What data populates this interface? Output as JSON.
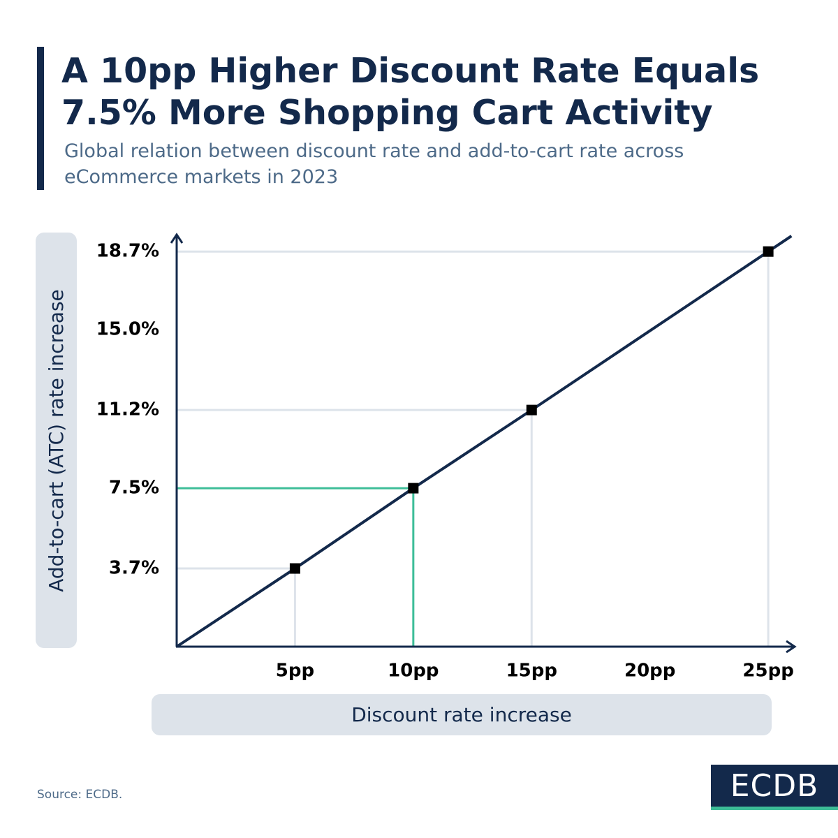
{
  "title": "A 10pp Higher Discount Rate Equals 7.5% More Shopping Cart Activity",
  "subtitle": "Global relation between discount rate and add-to-cart rate across eCommerce markets in 2023",
  "source": "Source: ECDB.",
  "logo": "ECDB",
  "chart_data": {
    "type": "line",
    "x_label": "Discount rate increase",
    "y_label": "Add-to-cart (ATC) rate increase",
    "x": [
      5,
      10,
      15,
      25
    ],
    "series": [
      {
        "values": [
          3.7,
          7.5,
          11.2,
          18.7
        ],
        "color": "#13294b"
      }
    ],
    "guide_colors": [
      "#dde3ea",
      "#3dbd98",
      "#dde3ea",
      "#dde3ea"
    ],
    "xlim": [
      0,
      26
    ],
    "ylim": [
      0,
      19.5
    ],
    "xticks": [
      {
        "value": 5,
        "label": "5pp"
      },
      {
        "value": 10,
        "label": "10pp"
      },
      {
        "value": 15,
        "label": "15pp"
      },
      {
        "value": 20,
        "label": "20pp"
      },
      {
        "value": 25,
        "label": "25pp"
      }
    ],
    "yticks": [
      {
        "value": 3.7,
        "label": "3.7%"
      },
      {
        "value": 7.5,
        "label": "7.5%"
      },
      {
        "value": 11.2,
        "label": "11.2%"
      },
      {
        "value": 15.0,
        "label": "15.0%"
      },
      {
        "value": 18.7,
        "label": "18.7%"
      }
    ]
  }
}
